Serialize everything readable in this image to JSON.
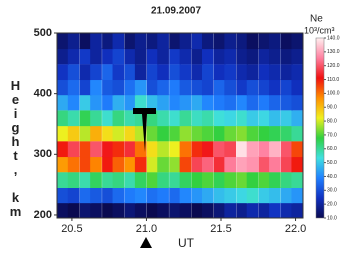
{
  "chart_data": {
    "type": "heatmap",
    "title": "21.09.2007",
    "x_label": "UT",
    "y_label": "Height, km",
    "colorbar_title": "Ne",
    "colorbar_unit": "10³/cm³",
    "x": [
      20.44,
      20.51,
      20.59,
      20.66,
      20.74,
      20.81,
      20.89,
      20.96,
      21.04,
      21.11,
      21.19,
      21.26,
      21.34,
      21.41,
      21.49,
      21.56,
      21.64,
      21.71,
      21.79,
      21.86,
      21.94,
      22.01
    ],
    "y": [
      208,
      233,
      258,
      284,
      309,
      335,
      360,
      386,
      411,
      436,
      462,
      487
    ],
    "z": [
      [
        12,
        10,
        14,
        12,
        10,
        12,
        15,
        12,
        10,
        12,
        14,
        12,
        10,
        12,
        15,
        20,
        18,
        22,
        20,
        25,
        22,
        20
      ],
      [
        30,
        28,
        35,
        32,
        30,
        35,
        38,
        40,
        36,
        38,
        35,
        40,
        42,
        45,
        48,
        50,
        52,
        55,
        50,
        48,
        45,
        42
      ],
      [
        60,
        62,
        58,
        65,
        60,
        62,
        58,
        65,
        70,
        62,
        60,
        65,
        68,
        70,
        66,
        70,
        72,
        68,
        70,
        66,
        62,
        60
      ],
      [
        95,
        100,
        105,
        98,
        110,
        102,
        96,
        108,
        80,
        72,
        75,
        105,
        118,
        122,
        115,
        125,
        130,
        128,
        120,
        125,
        118,
        110
      ],
      [
        110,
        118,
        105,
        120,
        112,
        108,
        115,
        100,
        85,
        78,
        82,
        100,
        108,
        112,
        120,
        118,
        138,
        130,
        126,
        132,
        120,
        105
      ],
      [
        82,
        88,
        78,
        92,
        85,
        80,
        86,
        78,
        72,
        68,
        70,
        75,
        72,
        70,
        68,
        72,
        74,
        70,
        68,
        66,
        64,
        60
      ],
      [
        62,
        58,
        66,
        60,
        55,
        62,
        58,
        60,
        62,
        58,
        55,
        60,
        56,
        58,
        54,
        52,
        55,
        50,
        52,
        48,
        50,
        46
      ],
      [
        45,
        40,
        50,
        42,
        38,
        46,
        42,
        55,
        48,
        44,
        40,
        42,
        45,
        40,
        38,
        36,
        40,
        35,
        38,
        34,
        32,
        30
      ],
      [
        30,
        35,
        28,
        40,
        32,
        30,
        36,
        42,
        30,
        34,
        38,
        32,
        30,
        28,
        34,
        30,
        26,
        30,
        28,
        25,
        28,
        24
      ],
      [
        25,
        30,
        22,
        28,
        34,
        26,
        30,
        20,
        28,
        24,
        30,
        26,
        22,
        28,
        24,
        26,
        22,
        20,
        24,
        22,
        20,
        22
      ],
      [
        18,
        22,
        26,
        20,
        24,
        28,
        22,
        18,
        24,
        20,
        26,
        22,
        18,
        24,
        20,
        22,
        18,
        16,
        20,
        18,
        16,
        18
      ],
      [
        14,
        18,
        12,
        20,
        16,
        22,
        14,
        18,
        16,
        20,
        14,
        18,
        22,
        16,
        14,
        18,
        16,
        12,
        14,
        16,
        12,
        14
      ]
    ],
    "xlim": [
      20.4,
      22.05
    ],
    "xticks": [
      20.5,
      {
        "value": 21,
        "label": "21.0"
      },
      21.5,
      {
        "value": 22,
        "label": "22.0"
      }
    ],
    "ylim": [
      195,
      500
    ],
    "yticks": [
      200,
      300,
      400,
      500
    ],
    "colorscale": [
      "#0a0a50",
      "#1030c0",
      "#2080ff",
      "#40e0e0",
      "#30d040",
      "#f0f020",
      "#ff9000",
      "#f01010",
      "#ff80a0",
      "#fff0f0"
    ],
    "colorbar_lim": [
      10,
      140
    ],
    "colorbar_ticks": [
      {
        "value": 10,
        "label": "10.0"
      },
      {
        "value": 20,
        "label": "20.0"
      },
      {
        "value": 30,
        "label": "30.0"
      },
      {
        "value": 40,
        "label": "40.0"
      },
      {
        "value": 50,
        "label": "50.0"
      },
      {
        "value": 60,
        "label": "60.0"
      },
      {
        "value": 70,
        "label": "70.0"
      },
      {
        "value": 80,
        "label": "80.0"
      },
      {
        "value": 90,
        "label": "90.0"
      },
      {
        "value": 100,
        "label": "100.0"
      },
      {
        "value": 110,
        "label": "110.0"
      },
      {
        "value": 120,
        "label": "120.0"
      },
      {
        "value": 130,
        "label": "130.0"
      },
      {
        "value": 140,
        "label": "140.0"
      }
    ]
  }
}
